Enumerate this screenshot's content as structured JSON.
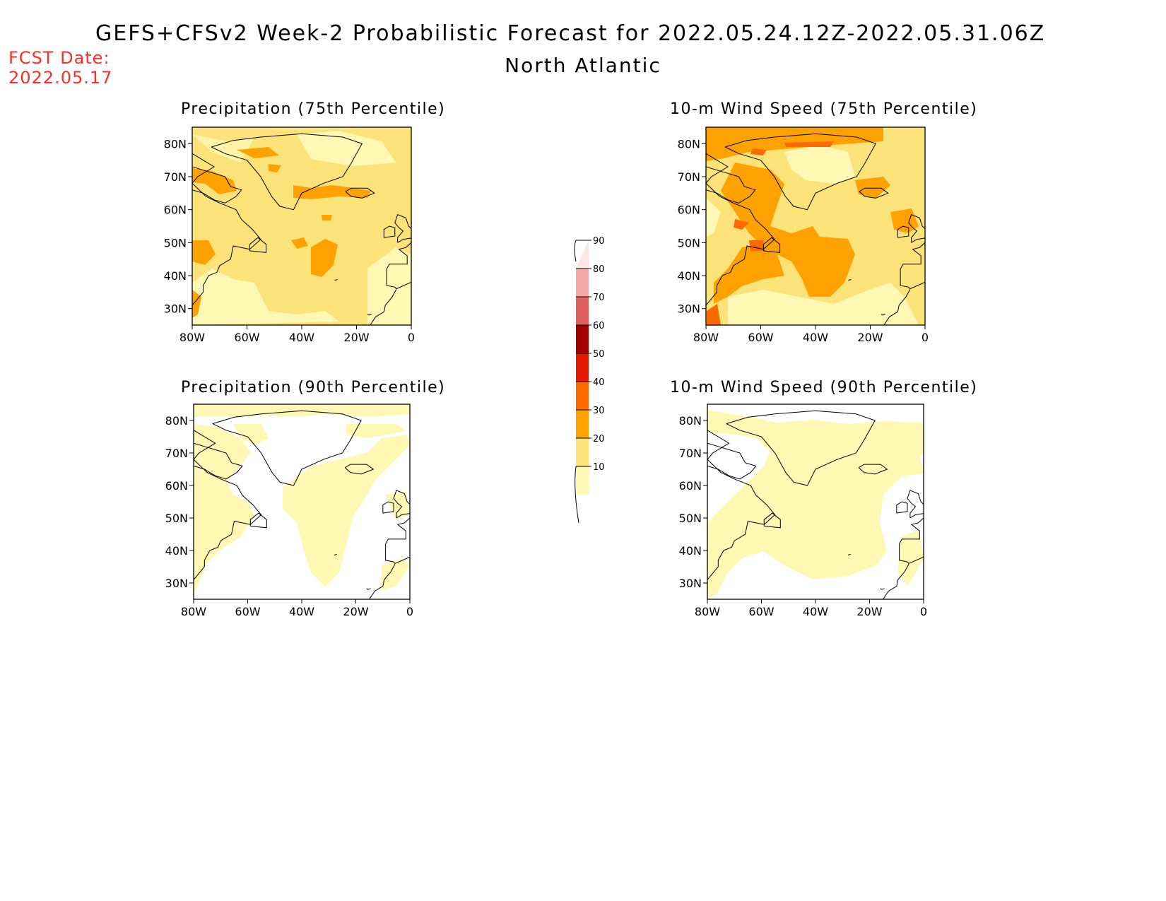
{
  "header": {
    "title": "GEFS+CFSv2 Week-2 Probabilistic Forecast for 2022.05.24.12Z-2022.05.31.06Z",
    "subtitle": "North Atlantic",
    "fcst_label": "FCST Date:",
    "fcst_date": "2022.05.17"
  },
  "panels": [
    {
      "title": "Precipitation (75th Percentile)",
      "level": "p75"
    },
    {
      "title": "10-m Wind Speed (75th Percentile)",
      "level": "w75"
    },
    {
      "title": "Precipitation (90th Percentile)",
      "level": "p90"
    },
    {
      "title": "10-m Wind Speed (90th Percentile)",
      "level": "w90"
    }
  ],
  "axes": {
    "lon_labels": [
      "80W",
      "60W",
      "40W",
      "20W",
      "0"
    ],
    "lat_labels": [
      "80N",
      "70N",
      "60N",
      "50N",
      "40N",
      "30N"
    ]
  },
  "colorbar": {
    "levels": [
      "10",
      "20",
      "30",
      "40",
      "50",
      "60",
      "70",
      "80",
      "90"
    ],
    "colors": [
      "#fff8b4",
      "#fbe37a",
      "#ffa200",
      "#ff6a00",
      "#e41a00",
      "#a50000",
      "#e06060",
      "#f4a8a8",
      "#fde6e6"
    ]
  }
}
